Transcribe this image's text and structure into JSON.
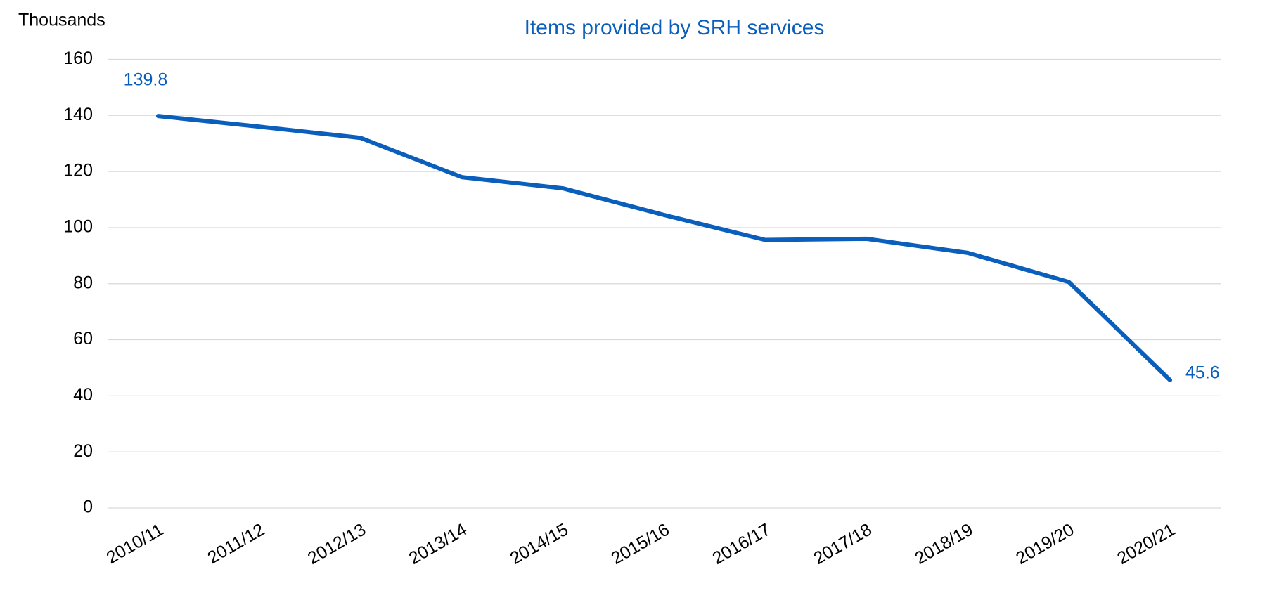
{
  "chart_data": {
    "type": "line",
    "title": "Items provided by SRH services",
    "y_label": "Thousands",
    "categories": [
      "2010/11",
      "2011/12",
      "2012/13",
      "2013/14",
      "2014/15",
      "2015/16",
      "2016/17",
      "2017/18",
      "2018/19",
      "2019/20",
      "2020/21"
    ],
    "series": [
      {
        "name": "Items",
        "color": "#0a5fbc",
        "values": [
          139.8,
          136,
          132,
          118,
          114,
          104.5,
          95.6,
          96,
          91,
          80.6,
          45.6
        ]
      }
    ],
    "data_labels": "first-last",
    "ylim": [
      0,
      160
    ],
    "yticks": [
      0,
      20,
      40,
      60,
      80,
      100,
      120,
      140,
      160
    ],
    "grid": true
  }
}
